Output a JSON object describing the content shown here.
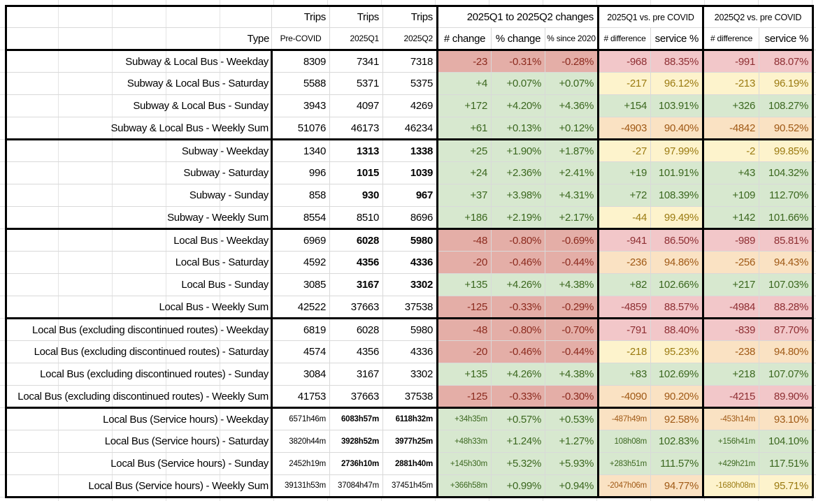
{
  "colors": {
    "red-bg": "#e4aea7",
    "red-tx": "#8b2a1e",
    "pink-bg": "#f2c7c9",
    "pink-tx": "#8e2f33",
    "green-bg": "#d7e8cf",
    "green-tx": "#3b671f",
    "yellow-bg": "#fdf3cc",
    "yellow-tx": "#9b7b12",
    "orange-bg": "#fae2c3",
    "orange-tx": "#a05a16",
    "grid-line": "#d9d9d9",
    "section-border": "#000000"
  },
  "header": {
    "row1": {
      "trips": "Trips",
      "changes_group": "2025Q1 to 2025Q2 changes",
      "q1_vs_group": "2025Q1 vs. pre COVID",
      "q2_vs_group": "2025Q2 vs. pre COVID"
    },
    "row2": {
      "type": "Type",
      "pre_covid": "Pre-COVID",
      "q1": "2025Q1",
      "q2": "2025Q2",
      "num_change": "# change",
      "pct_change": "% change",
      "pct_since_2020": "% since 2020",
      "num_difference_q1": "# difference",
      "service_pct_q1": "service %",
      "num_difference_q2": "# difference",
      "service_pct_q2": "service %"
    }
  },
  "rows": [
    {
      "label": "Subway & Local Bus - Weekday",
      "pre": "8309",
      "q1": "7341",
      "q2": "7318",
      "bold_q": false,
      "small": false,
      "change_num": {
        "v": "-23",
        "c": "red"
      },
      "change_pct": {
        "v": "-0.31%",
        "c": "red"
      },
      "since_pct": {
        "v": "-0.28%",
        "c": "red"
      },
      "diff_q1": {
        "v": "-968",
        "c": "pink"
      },
      "svc_q1": {
        "v": "88.35%",
        "c": "pink"
      },
      "diff_q2": {
        "v": "-991",
        "c": "pink"
      },
      "svc_q2": {
        "v": "88.07%",
        "c": "pink"
      }
    },
    {
      "label": "Subway & Local Bus - Saturday",
      "pre": "5588",
      "q1": "5371",
      "q2": "5375",
      "bold_q": false,
      "small": false,
      "change_num": {
        "v": "+4",
        "c": "green"
      },
      "change_pct": {
        "v": "+0.07%",
        "c": "green"
      },
      "since_pct": {
        "v": "+0.07%",
        "c": "green"
      },
      "diff_q1": {
        "v": "-217",
        "c": "yellow"
      },
      "svc_q1": {
        "v": "96.12%",
        "c": "yellow"
      },
      "diff_q2": {
        "v": "-213",
        "c": "yellow"
      },
      "svc_q2": {
        "v": "96.19%",
        "c": "yellow"
      }
    },
    {
      "label": "Subway & Local Bus - Sunday",
      "pre": "3943",
      "q1": "4097",
      "q2": "4269",
      "bold_q": false,
      "small": false,
      "change_num": {
        "v": "+172",
        "c": "green"
      },
      "change_pct": {
        "v": "+4.20%",
        "c": "green"
      },
      "since_pct": {
        "v": "+4.36%",
        "c": "green"
      },
      "diff_q1": {
        "v": "+154",
        "c": "green"
      },
      "svc_q1": {
        "v": "103.91%",
        "c": "green"
      },
      "diff_q2": {
        "v": "+326",
        "c": "green"
      },
      "svc_q2": {
        "v": "108.27%",
        "c": "green"
      }
    },
    {
      "label": "Subway & Local Bus - Weekly Sum",
      "pre": "51076",
      "q1": "46173",
      "q2": "46234",
      "bold_q": false,
      "small": false,
      "change_num": {
        "v": "+61",
        "c": "green"
      },
      "change_pct": {
        "v": "+0.13%",
        "c": "green"
      },
      "since_pct": {
        "v": "+0.12%",
        "c": "green"
      },
      "diff_q1": {
        "v": "-4903",
        "c": "orange"
      },
      "svc_q1": {
        "v": "90.40%",
        "c": "orange"
      },
      "diff_q2": {
        "v": "-4842",
        "c": "orange"
      },
      "svc_q2": {
        "v": "90.52%",
        "c": "orange"
      }
    },
    {
      "label": "Subway - Weekday",
      "pre": "1340",
      "q1": "1313",
      "q2": "1338",
      "bold_q": true,
      "small": false,
      "change_num": {
        "v": "+25",
        "c": "green"
      },
      "change_pct": {
        "v": "+1.90%",
        "c": "green"
      },
      "since_pct": {
        "v": "+1.87%",
        "c": "green"
      },
      "diff_q1": {
        "v": "-27",
        "c": "yellow"
      },
      "svc_q1": {
        "v": "97.99%",
        "c": "yellow"
      },
      "diff_q2": {
        "v": "-2",
        "c": "yellow"
      },
      "svc_q2": {
        "v": "99.85%",
        "c": "yellow"
      }
    },
    {
      "label": "Subway - Saturday",
      "pre": "996",
      "q1": "1015",
      "q2": "1039",
      "bold_q": true,
      "small": false,
      "change_num": {
        "v": "+24",
        "c": "green"
      },
      "change_pct": {
        "v": "+2.36%",
        "c": "green"
      },
      "since_pct": {
        "v": "+2.41%",
        "c": "green"
      },
      "diff_q1": {
        "v": "+19",
        "c": "green"
      },
      "svc_q1": {
        "v": "101.91%",
        "c": "green"
      },
      "diff_q2": {
        "v": "+43",
        "c": "green"
      },
      "svc_q2": {
        "v": "104.32%",
        "c": "green"
      }
    },
    {
      "label": "Subway - Sunday",
      "pre": "858",
      "q1": "930",
      "q2": "967",
      "bold_q": true,
      "small": false,
      "change_num": {
        "v": "+37",
        "c": "green"
      },
      "change_pct": {
        "v": "+3.98%",
        "c": "green"
      },
      "since_pct": {
        "v": "+4.31%",
        "c": "green"
      },
      "diff_q1": {
        "v": "+72",
        "c": "green"
      },
      "svc_q1": {
        "v": "108.39%",
        "c": "green"
      },
      "diff_q2": {
        "v": "+109",
        "c": "green"
      },
      "svc_q2": {
        "v": "112.70%",
        "c": "green"
      }
    },
    {
      "label": "Subway - Weekly Sum",
      "pre": "8554",
      "q1": "8510",
      "q2": "8696",
      "bold_q": false,
      "small": false,
      "change_num": {
        "v": "+186",
        "c": "green"
      },
      "change_pct": {
        "v": "+2.19%",
        "c": "green"
      },
      "since_pct": {
        "v": "+2.17%",
        "c": "green"
      },
      "diff_q1": {
        "v": "-44",
        "c": "yellow"
      },
      "svc_q1": {
        "v": "99.49%",
        "c": "yellow"
      },
      "diff_q2": {
        "v": "+142",
        "c": "green"
      },
      "svc_q2": {
        "v": "101.66%",
        "c": "green"
      }
    },
    {
      "label": "Local Bus - Weekday",
      "pre": "6969",
      "q1": "6028",
      "q2": "5980",
      "bold_q": true,
      "small": false,
      "change_num": {
        "v": "-48",
        "c": "red"
      },
      "change_pct": {
        "v": "-0.80%",
        "c": "red"
      },
      "since_pct": {
        "v": "-0.69%",
        "c": "red"
      },
      "diff_q1": {
        "v": "-941",
        "c": "pink"
      },
      "svc_q1": {
        "v": "86.50%",
        "c": "pink"
      },
      "diff_q2": {
        "v": "-989",
        "c": "pink"
      },
      "svc_q2": {
        "v": "85.81%",
        "c": "pink"
      }
    },
    {
      "label": "Local Bus - Saturday",
      "pre": "4592",
      "q1": "4356",
      "q2": "4336",
      "bold_q": true,
      "small": false,
      "change_num": {
        "v": "-20",
        "c": "red"
      },
      "change_pct": {
        "v": "-0.46%",
        "c": "red"
      },
      "since_pct": {
        "v": "-0.44%",
        "c": "red"
      },
      "diff_q1": {
        "v": "-236",
        "c": "orange"
      },
      "svc_q1": {
        "v": "94.86%",
        "c": "orange"
      },
      "diff_q2": {
        "v": "-256",
        "c": "orange"
      },
      "svc_q2": {
        "v": "94.43%",
        "c": "orange"
      }
    },
    {
      "label": "Local Bus - Sunday",
      "pre": "3085",
      "q1": "3167",
      "q2": "3302",
      "bold_q": true,
      "small": false,
      "change_num": {
        "v": "+135",
        "c": "green"
      },
      "change_pct": {
        "v": "+4.26%",
        "c": "green"
      },
      "since_pct": {
        "v": "+4.38%",
        "c": "green"
      },
      "diff_q1": {
        "v": "+82",
        "c": "green"
      },
      "svc_q1": {
        "v": "102.66%",
        "c": "green"
      },
      "diff_q2": {
        "v": "+217",
        "c": "green"
      },
      "svc_q2": {
        "v": "107.03%",
        "c": "green"
      }
    },
    {
      "label": "Local Bus - Weekly Sum",
      "pre": "42522",
      "q1": "37663",
      "q2": "37538",
      "bold_q": false,
      "small": false,
      "change_num": {
        "v": "-125",
        "c": "red"
      },
      "change_pct": {
        "v": "-0.33%",
        "c": "red"
      },
      "since_pct": {
        "v": "-0.29%",
        "c": "red"
      },
      "diff_q1": {
        "v": "-4859",
        "c": "pink"
      },
      "svc_q1": {
        "v": "88.57%",
        "c": "pink"
      },
      "diff_q2": {
        "v": "-4984",
        "c": "pink"
      },
      "svc_q2": {
        "v": "88.28%",
        "c": "pink"
      }
    },
    {
      "label": "Local Bus (excluding discontinued routes) - Weekday",
      "pre": "6819",
      "q1": "6028",
      "q2": "5980",
      "bold_q": false,
      "small": false,
      "change_num": {
        "v": "-48",
        "c": "red"
      },
      "change_pct": {
        "v": "-0.80%",
        "c": "red"
      },
      "since_pct": {
        "v": "-0.70%",
        "c": "red"
      },
      "diff_q1": {
        "v": "-791",
        "c": "pink"
      },
      "svc_q1": {
        "v": "88.40%",
        "c": "pink"
      },
      "diff_q2": {
        "v": "-839",
        "c": "pink"
      },
      "svc_q2": {
        "v": "87.70%",
        "c": "pink"
      }
    },
    {
      "label": "Local Bus (excluding discontinued routes) - Saturday",
      "pre": "4574",
      "q1": "4356",
      "q2": "4336",
      "bold_q": false,
      "small": false,
      "change_num": {
        "v": "-20",
        "c": "red"
      },
      "change_pct": {
        "v": "-0.46%",
        "c": "red"
      },
      "since_pct": {
        "v": "-0.44%",
        "c": "red"
      },
      "diff_q1": {
        "v": "-218",
        "c": "yellow"
      },
      "svc_q1": {
        "v": "95.23%",
        "c": "yellow"
      },
      "diff_q2": {
        "v": "-238",
        "c": "orange"
      },
      "svc_q2": {
        "v": "94.80%",
        "c": "orange"
      }
    },
    {
      "label": "Local Bus (excluding discontinued routes) - Sunday",
      "pre": "3084",
      "q1": "3167",
      "q2": "3302",
      "bold_q": false,
      "small": false,
      "change_num": {
        "v": "+135",
        "c": "green"
      },
      "change_pct": {
        "v": "+4.26%",
        "c": "green"
      },
      "since_pct": {
        "v": "+4.38%",
        "c": "green"
      },
      "diff_q1": {
        "v": "+83",
        "c": "green"
      },
      "svc_q1": {
        "v": "102.69%",
        "c": "green"
      },
      "diff_q2": {
        "v": "+218",
        "c": "green"
      },
      "svc_q2": {
        "v": "107.07%",
        "c": "green"
      }
    },
    {
      "label": "Local Bus (excluding discontinued routes) - Weekly Sum",
      "pre": "41753",
      "q1": "37663",
      "q2": "37538",
      "bold_q": false,
      "small": false,
      "change_num": {
        "v": "-125",
        "c": "red"
      },
      "change_pct": {
        "v": "-0.33%",
        "c": "red"
      },
      "since_pct": {
        "v": "-0.30%",
        "c": "red"
      },
      "diff_q1": {
        "v": "-4090",
        "c": "orange"
      },
      "svc_q1": {
        "v": "90.20%",
        "c": "orange"
      },
      "diff_q2": {
        "v": "-4215",
        "c": "pink"
      },
      "svc_q2": {
        "v": "89.90%",
        "c": "pink"
      }
    },
    {
      "label": "Local Bus (Service hours) - Weekday",
      "pre": "6571h46m",
      "q1": "6083h57m",
      "q2": "6118h32m",
      "bold_q": true,
      "small": true,
      "change_num": {
        "v": "+34h35m",
        "c": "green"
      },
      "change_pct": {
        "v": "+0.57%",
        "c": "green"
      },
      "since_pct": {
        "v": "+0.53%",
        "c": "green"
      },
      "diff_q1": {
        "v": "-487h49m",
        "c": "orange"
      },
      "svc_q1": {
        "v": "92.58%",
        "c": "orange"
      },
      "diff_q2": {
        "v": "-453h14m",
        "c": "orange"
      },
      "svc_q2": {
        "v": "93.10%",
        "c": "orange"
      }
    },
    {
      "label": "Local Bus (Service hours) - Saturday",
      "pre": "3820h44m",
      "q1": "3928h52m",
      "q2": "3977h25m",
      "bold_q": true,
      "small": true,
      "change_num": {
        "v": "+48h33m",
        "c": "green"
      },
      "change_pct": {
        "v": "+1.24%",
        "c": "green"
      },
      "since_pct": {
        "v": "+1.27%",
        "c": "green"
      },
      "diff_q1": {
        "v": "108h08m",
        "c": "green"
      },
      "svc_q1": {
        "v": "102.83%",
        "c": "green"
      },
      "diff_q2": {
        "v": "+156h41m",
        "c": "green"
      },
      "svc_q2": {
        "v": "104.10%",
        "c": "green"
      }
    },
    {
      "label": "Local Bus (Service hours) - Sunday",
      "pre": "2452h19m",
      "q1": "2736h10m",
      "q2": "2881h40m",
      "bold_q": true,
      "small": true,
      "change_num": {
        "v": "+145h30m",
        "c": "green"
      },
      "change_pct": {
        "v": "+5.32%",
        "c": "green"
      },
      "since_pct": {
        "v": "+5.93%",
        "c": "green"
      },
      "diff_q1": {
        "v": "+283h51m",
        "c": "green"
      },
      "svc_q1": {
        "v": "111.57%",
        "c": "green"
      },
      "diff_q2": {
        "v": "+429h21m",
        "c": "green"
      },
      "svc_q2": {
        "v": "117.51%",
        "c": "green"
      }
    },
    {
      "label": "Local Bus (Service hours) - Weekly Sum",
      "pre": "39131h53m",
      "q1": "37084h47m",
      "q2": "37451h45m",
      "bold_q": false,
      "small": true,
      "change_num": {
        "v": "+366h58m",
        "c": "green"
      },
      "change_pct": {
        "v": "+0.99%",
        "c": "green"
      },
      "since_pct": {
        "v": "+0.94%",
        "c": "green"
      },
      "diff_q1": {
        "v": "-2047h06m",
        "c": "orange"
      },
      "svc_q1": {
        "v": "94.77%",
        "c": "orange"
      },
      "diff_q2": {
        "v": "-1680h08m",
        "c": "yellow"
      },
      "svc_q2": {
        "v": "95.71%",
        "c": "yellow"
      }
    }
  ]
}
